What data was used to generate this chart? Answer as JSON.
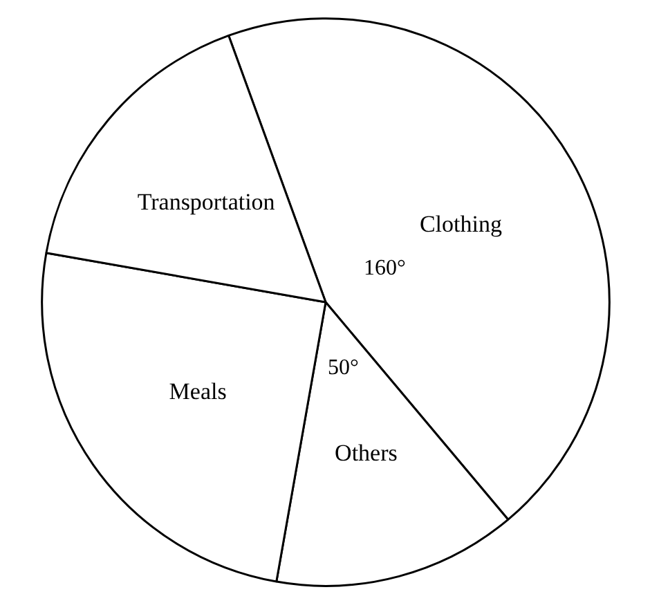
{
  "chart_data": {
    "type": "pie",
    "categories": [
      "Clothing",
      "Others",
      "Meals",
      "Transportation"
    ],
    "values": [
      160,
      50,
      90,
      60
    ],
    "value_labels": [
      "160°",
      "50°",
      null,
      null
    ],
    "colors": [
      "#ffffff",
      "#ffffff",
      "#ffffff",
      "#ffffff"
    ]
  }
}
